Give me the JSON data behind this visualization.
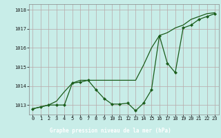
{
  "title": "Graphe pression niveau de la mer (hPa)",
  "bg_color": "#c8ede8",
  "grid_color": "#b8a8a8",
  "line_color": "#1a5c1a",
  "x_labels": [
    "0",
    "1",
    "2",
    "3",
    "4",
    "5",
    "6",
    "7",
    "8",
    "9",
    "10",
    "11",
    "12",
    "13",
    "14",
    "15",
    "16",
    "17",
    "18",
    "19",
    "20",
    "21",
    "22",
    "23"
  ],
  "series1": [
    1012.8,
    1012.9,
    1013.0,
    1013.0,
    1013.0,
    1014.15,
    1014.2,
    1014.3,
    1013.8,
    1013.35,
    1013.05,
    1013.05,
    1013.1,
    1012.7,
    1013.1,
    1013.8,
    1016.65,
    1015.2,
    1014.7,
    1017.05,
    1017.2,
    1017.5,
    1017.65,
    1017.8
  ],
  "series2": [
    1012.8,
    1012.9,
    1013.0,
    1013.2,
    1013.7,
    1014.15,
    1014.3,
    1014.3,
    1014.3,
    1014.3,
    1014.3,
    1014.3,
    1014.3,
    1014.3,
    1015.1,
    1016.0,
    1016.65,
    1016.8,
    1017.05,
    1017.2,
    1017.5,
    1017.65,
    1017.8,
    1017.85
  ],
  "ylim": [
    1012.5,
    1018.3
  ],
  "yticks": [
    1013,
    1014,
    1015,
    1016,
    1017,
    1018
  ],
  "footer_bg": "#2d6b2d",
  "footer_color": "#ffffff",
  "label_fontsize": 5.5,
  "tick_fontsize": 5.0
}
